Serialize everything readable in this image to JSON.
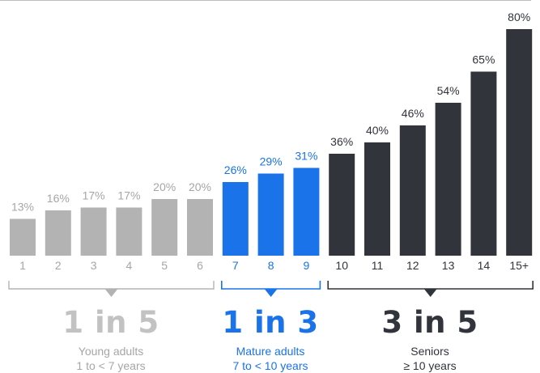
{
  "chart_data": {
    "type": "bar",
    "categories": [
      "1",
      "2",
      "3",
      "4",
      "5",
      "6",
      "7",
      "8",
      "9",
      "10",
      "11",
      "12",
      "13",
      "14",
      "15+"
    ],
    "values": [
      13,
      16,
      17,
      17,
      20,
      20,
      26,
      29,
      31,
      36,
      40,
      46,
      54,
      65,
      80
    ],
    "value_labels": [
      "13%",
      "16%",
      "17%",
      "17%",
      "20%",
      "20%",
      "26%",
      "29%",
      "31%",
      "36%",
      "40%",
      "46%",
      "54%",
      "65%",
      "80%"
    ],
    "ylim": [
      0,
      80
    ],
    "groups": [
      {
        "range": [
          0,
          5
        ],
        "ratio": "1 in 5",
        "label": "Young adults",
        "range_text": "1 to < 7 years",
        "color": "#b3b3b3",
        "label_color": "#a6a6a6",
        "accent": "#b3b3b3"
      },
      {
        "range": [
          6,
          8
        ],
        "ratio": "1 in 3",
        "label": "Mature adults",
        "range_text": "7 to < 10 years",
        "color": "#1a73e8",
        "label_color": "#1a73e8",
        "accent": "#1a73e8"
      },
      {
        "range": [
          9,
          14
        ],
        "ratio": "3 in 5",
        "label": "Seniors",
        "range_text": "≥ 10 years",
        "color": "#31343b",
        "label_color": "#31343b",
        "accent": "#31343b"
      }
    ],
    "grid": false,
    "legend": "none"
  }
}
